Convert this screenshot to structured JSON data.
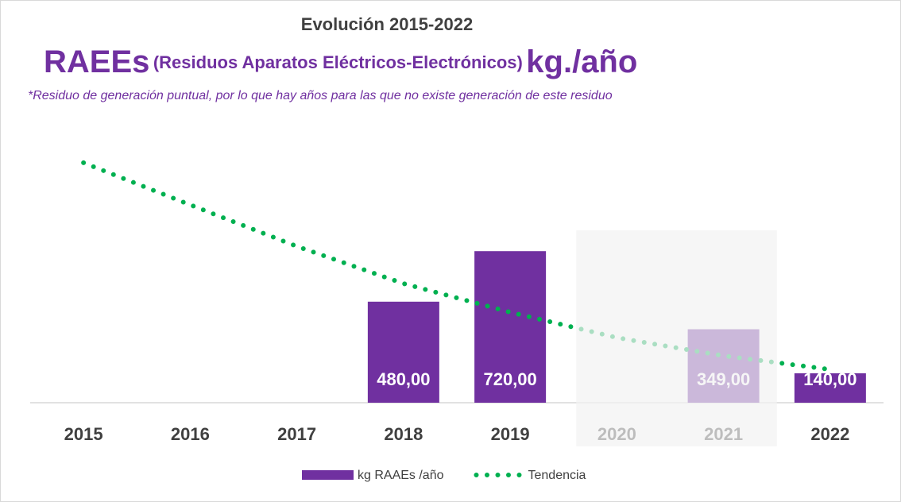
{
  "chart_data": {
    "type": "bar",
    "subtitle": "Evolución 2015-2022",
    "title": [
      "RAEEs",
      "(Residuos Aparatos Eléctricos-Electrónicos)",
      "kg./año"
    ],
    "note": "*Residuo de generación puntual, por lo que hay años para las que no existe generación de este residuo",
    "categories": [
      "2015",
      "2016",
      "2017",
      "2018",
      "2019",
      "2020",
      "2021",
      "2022"
    ],
    "series": [
      {
        "name": "kg RAAEs /año",
        "type": "bar",
        "color": "#7030a0",
        "values": [
          null,
          null,
          null,
          480,
          720,
          null,
          349,
          140
        ],
        "value_labels": [
          null,
          null,
          null,
          "480,00",
          "720,00",
          null,
          "349,00",
          "140,00"
        ]
      },
      {
        "name": "Tendencia",
        "type": "line",
        "style": "dotted",
        "color": "#00b050",
        "values": [
          1140,
          940,
          743,
          566,
          430,
          309,
          223,
          158
        ]
      }
    ],
    "ylim": [
      0,
      1200
    ],
    "shaded_categories": [
      5,
      6
    ],
    "legend": "bottom"
  }
}
